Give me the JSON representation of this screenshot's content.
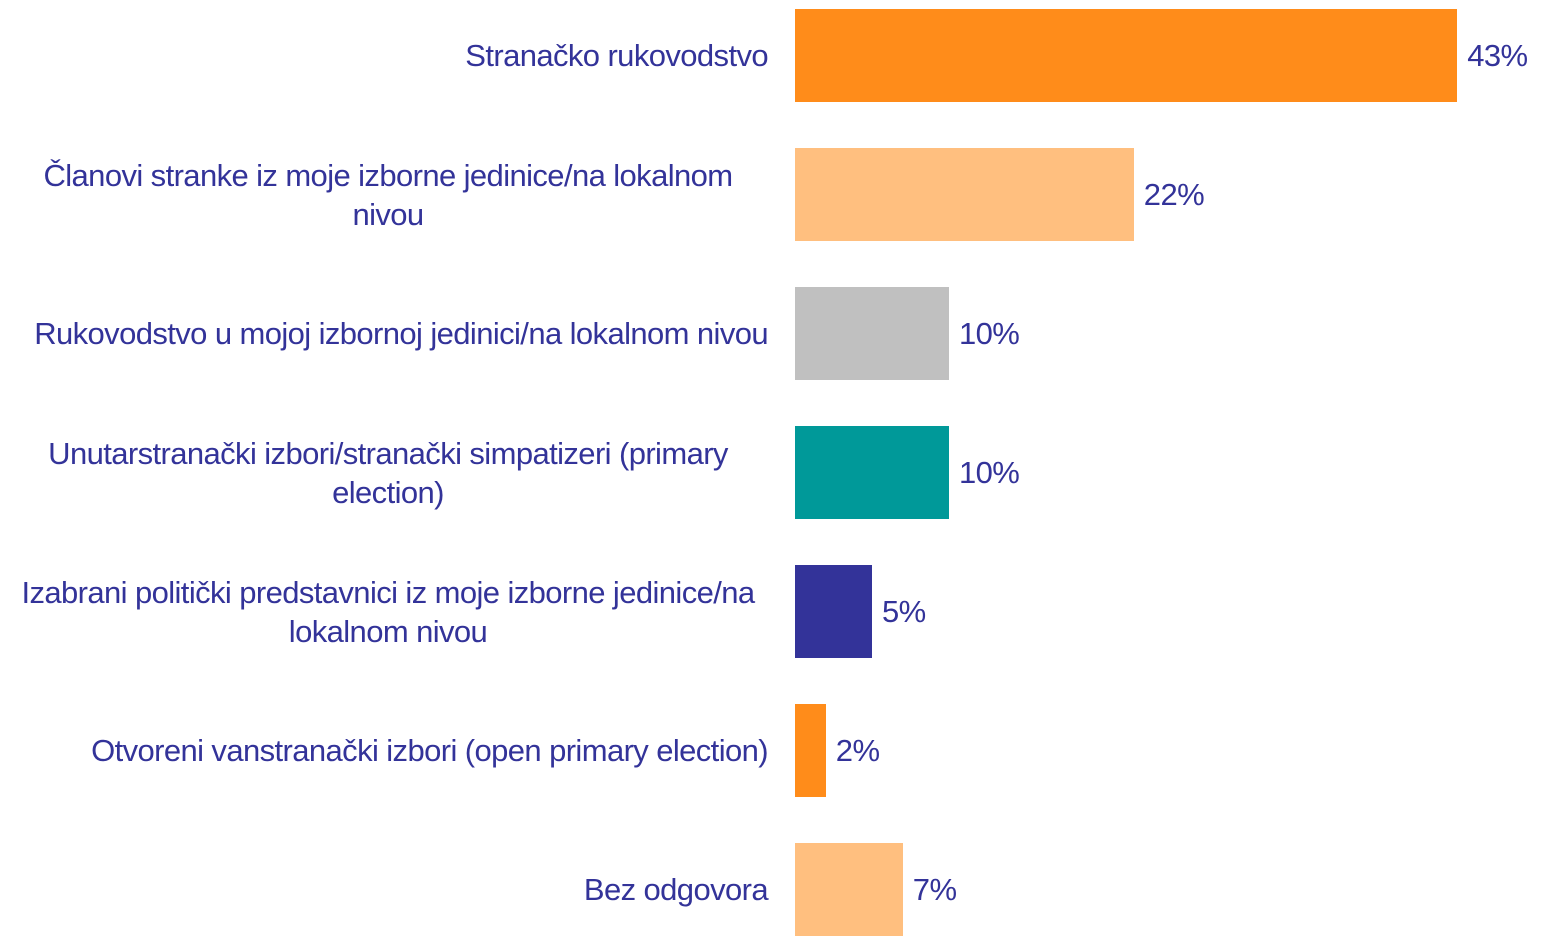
{
  "chart_data": {
    "type": "hbar",
    "categories": [
      "Stranačko rukovodstvo",
      "Članovi stranke iz moje izborne jedinice/na lokalnom nivou",
      "Rukovodstvo u mojoj izbornoj jedinici/na lokalnom nivou",
      "Unutarstranački izbori/stranački simpatizeri (primary election)",
      "Izabrani politički predstavnici iz moje izborne jedinice/na lokalnom nivou",
      "Otvoreni vanstranački izbori (open primary election)",
      "Bez odgovora"
    ],
    "values": [
      43,
      22,
      10,
      10,
      5,
      2,
      7
    ],
    "value_labels": [
      "43%",
      "22%",
      "10%",
      "10%",
      "5%",
      "2%",
      "7%"
    ],
    "colors": [
      "#ff8c1a",
      "#ffbf7f",
      "#c0c0c0",
      "#009999",
      "#333399",
      "#ff8c1a",
      "#ffbf7f"
    ]
  }
}
